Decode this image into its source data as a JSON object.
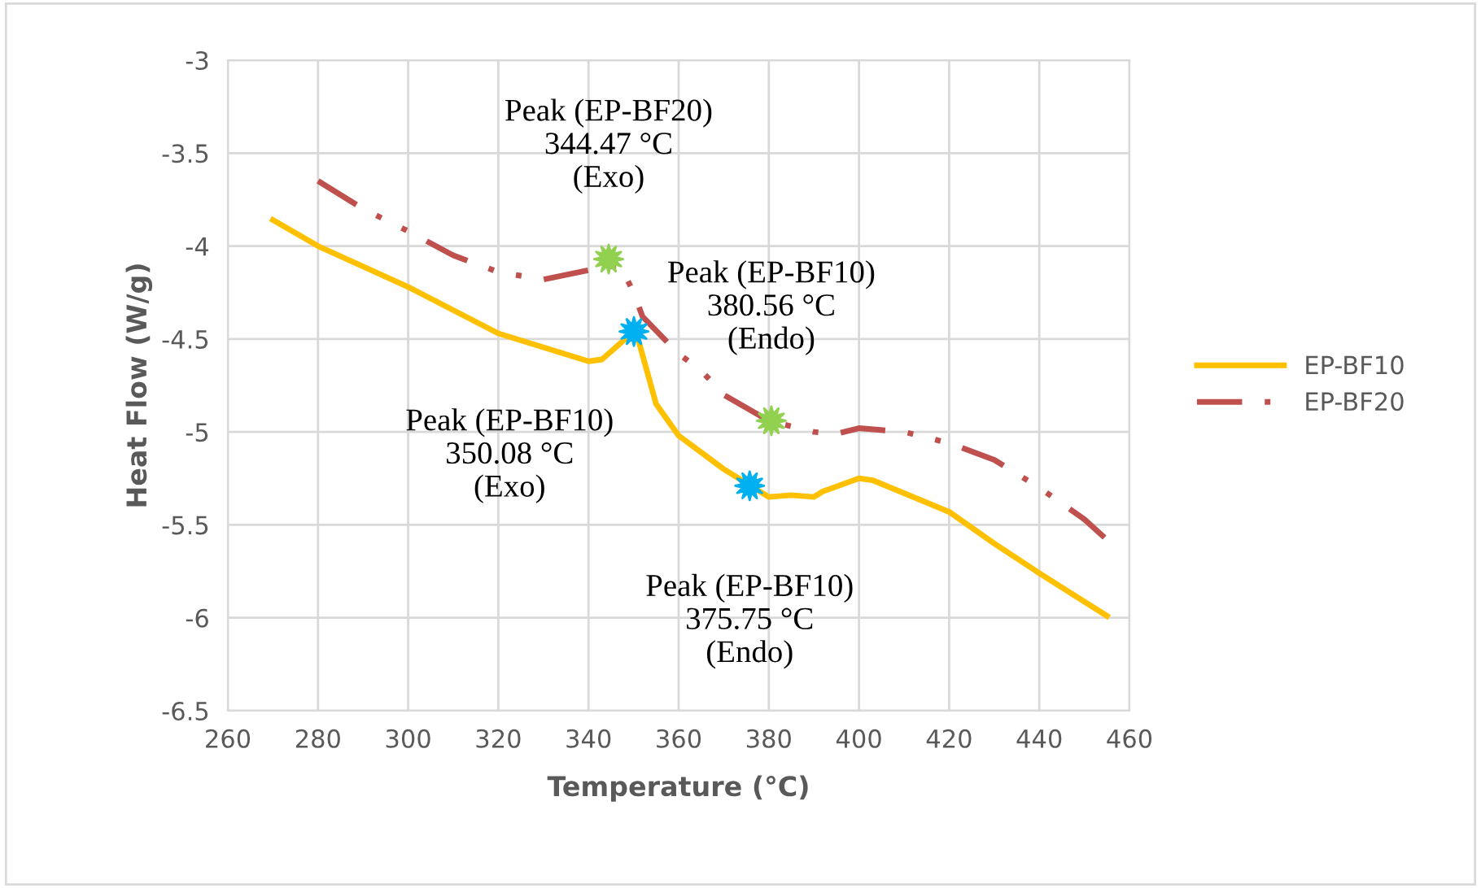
{
  "chart_data": {
    "type": "line",
    "xlabel": "Temperature (°C)",
    "ylabel": "Heat Flow (W/g)",
    "xlim": [
      260,
      460
    ],
    "xticks": [
      260,
      280,
      300,
      320,
      340,
      360,
      380,
      400,
      420,
      440,
      460
    ],
    "ylim": [
      -6.5,
      -3
    ],
    "yticks": [
      -6.5,
      -6,
      -5.5,
      -5,
      -4.5,
      -4,
      -3.5,
      -3
    ],
    "grid": true,
    "legend": "right",
    "series": [
      {
        "name": "EP-BF10",
        "color": "#ffc000",
        "line_style": "solid",
        "x": [
          270,
          280,
          300,
          320,
          340,
          343,
          350,
          351,
          355,
          360,
          370,
          376,
          380,
          385,
          390,
          392,
          400,
          403,
          410,
          420,
          430,
          440,
          455
        ],
        "values": [
          -3.86,
          -4.0,
          -4.22,
          -4.47,
          -4.62,
          -4.61,
          -4.46,
          -4.5,
          -4.85,
          -5.02,
          -5.2,
          -5.29,
          -5.35,
          -5.34,
          -5.35,
          -5.32,
          -5.25,
          -5.26,
          -5.33,
          -5.43,
          -5.6,
          -5.76,
          -5.99
        ]
      },
      {
        "name": "EP-BF20",
        "color": "#c0504d",
        "line_style": "dashdot",
        "x": [
          280,
          290,
          300,
          310,
          320,
          330,
          340,
          347,
          350,
          352,
          360,
          365,
          370,
          380,
          385,
          390,
          395,
          400,
          410,
          420,
          430,
          440,
          450,
          455
        ],
        "values": [
          -3.65,
          -3.8,
          -3.92,
          -4.05,
          -4.14,
          -4.18,
          -4.13,
          -4.1,
          -4.25,
          -4.38,
          -4.58,
          -4.67,
          -4.8,
          -4.94,
          -4.97,
          -5.0,
          -5.01,
          -4.98,
          -5.0,
          -5.06,
          -5.15,
          -5.3,
          -5.47,
          -5.58
        ]
      },
      {
        "type": "scatter",
        "marker": "star",
        "x": [
          344.47,
          350.08,
          380.56,
          375.75
        ],
        "values": [
          -4.07,
          -4.46,
          -4.94,
          -5.29
        ],
        "colors": [
          "#92d050",
          "#00b0f0",
          "#92d050",
          "#00b0f0"
        ]
      }
    ],
    "annotations": [
      {
        "text": "Peak (EP-BF20)\n344.47 °C\n(Exo)",
        "x": 344.47,
        "y": -4.07
      },
      {
        "text": "Peak (EP-BF10)\n350.08 °C\n(Exo)",
        "x": 350.08,
        "y": -4.46
      },
      {
        "text": "Peak (EP-BF10)\n380.56 °C\n(Endo)",
        "x": 380.56,
        "y": -4.94
      },
      {
        "text": "Peak (EP-BF10)\n375.75 °C\n(Endo)",
        "x": 375.75,
        "y": -5.29
      }
    ]
  }
}
